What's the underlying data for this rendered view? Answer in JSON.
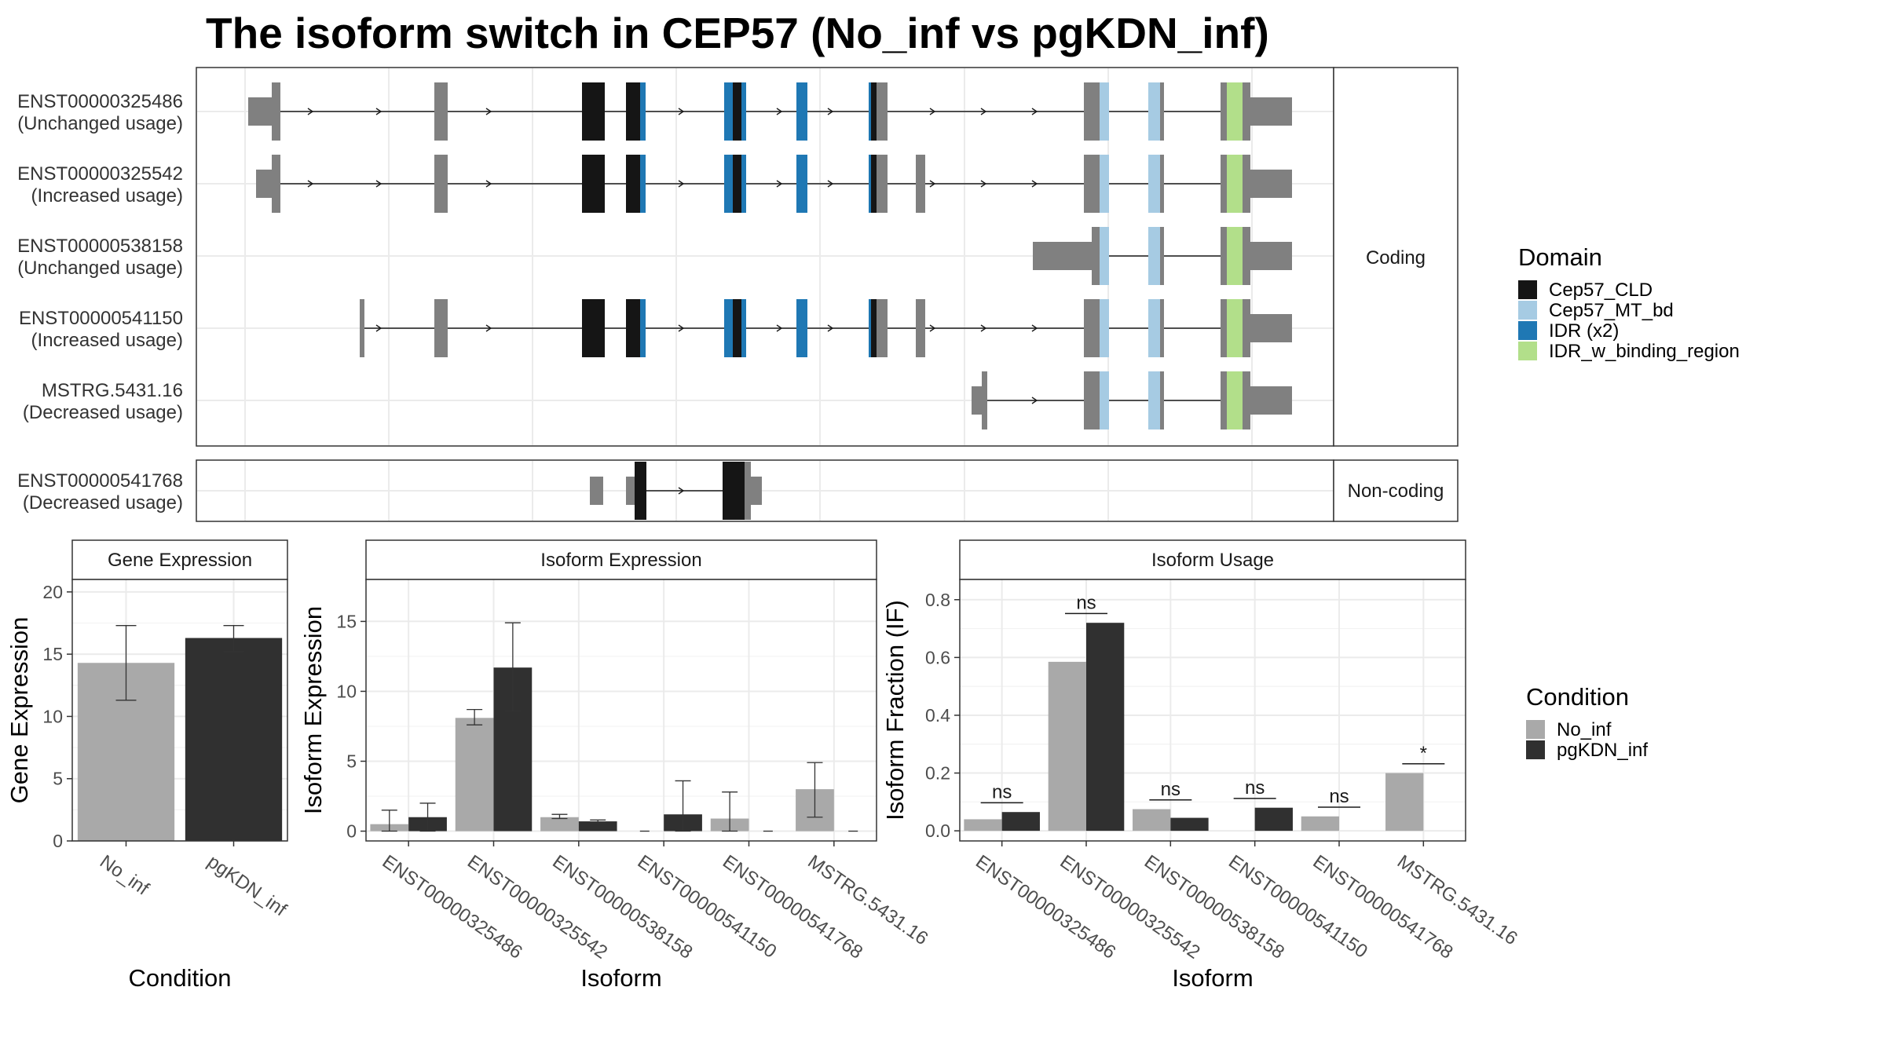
{
  "title": "The isoform switch in CEP57 (No_inf vs pgKDN_inf)",
  "colors": {
    "exon": "#808080",
    "Cep57_CLD": "#151515",
    "Cep57_MT_bd": "#a6cbe3",
    "IDR (x2)": "#1f78b4",
    "IDR_w_binding_region": "#b2df8a",
    "No_inf": "#a9a9a9",
    "pgKDN_inf": "#303030"
  },
  "structure": {
    "coding_label": "Coding",
    "noncoding_label": "Non-coding",
    "transcripts": [
      {
        "id": "ENST00000325486",
        "usage": "(Unchanged usage)"
      },
      {
        "id": "ENST00000325542",
        "usage": "(Increased usage)"
      },
      {
        "id": "ENST00000538158",
        "usage": "(Unchanged usage)"
      },
      {
        "id": "ENST00000541150",
        "usage": "(Increased usage)"
      },
      {
        "id": "MSTRG.5431.16",
        "usage": "(Decreased usage)"
      }
    ],
    "noncoding_transcripts": [
      {
        "id": "ENST00000541768",
        "usage": "(Decreased usage)"
      }
    ]
  },
  "legend_domain": {
    "title": "Domain",
    "items": [
      "Cep57_CLD",
      "Cep57_MT_bd",
      "IDR (x2)",
      "IDR_w_binding_region"
    ]
  },
  "legend_condition": {
    "title": "Condition",
    "items": [
      "No_inf",
      "pgKDN_inf"
    ]
  },
  "chart_data": [
    {
      "type": "bar",
      "title": "Gene Expression",
      "xlabel": "Condition",
      "ylabel": "Gene Expression",
      "ylim": [
        0,
        21
      ],
      "yticks": [
        0,
        5,
        10,
        15,
        20
      ],
      "categories": [
        "No_inf",
        "pgKDN_inf"
      ],
      "values": [
        14.3,
        16.3
      ],
      "errors": [
        [
          11.3,
          17.3
        ],
        [
          15.2,
          17.3
        ]
      ]
    },
    {
      "type": "bar",
      "title": "Isoform Expression",
      "xlabel": "Isoform",
      "ylabel": "Isoform Expression",
      "ylim": [
        -0.7,
        18
      ],
      "yticks": [
        0,
        5,
        10,
        15
      ],
      "categories": [
        "ENST00000325486",
        "ENST00000325542",
        "ENST00000538158",
        "ENST00000541150",
        "ENST00000541768",
        "MSTRG.5431.16"
      ],
      "series": [
        {
          "name": "No_inf",
          "values": [
            0.5,
            8.1,
            1.0,
            0.0,
            0.9,
            3.0
          ],
          "errors": [
            [
              0.0,
              1.5
            ],
            [
              7.6,
              8.7
            ],
            [
              0.9,
              1.2
            ],
            [
              0,
              0
            ],
            [
              0.0,
              2.8
            ],
            [
              1.0,
              4.9
            ]
          ]
        },
        {
          "name": "pgKDN_inf",
          "values": [
            1.0,
            11.7,
            0.7,
            1.2,
            0.0,
            0.0
          ],
          "errors": [
            [
              0.0,
              2.0
            ],
            [
              8.6,
              14.9
            ],
            [
              0.6,
              0.8
            ],
            [
              0.0,
              3.6
            ],
            [
              0,
              0
            ],
            [
              0,
              0
            ]
          ]
        }
      ]
    },
    {
      "type": "bar",
      "title": "Isoform Usage",
      "xlabel": "Isoform",
      "ylabel": "Isoform Fraction (IF)",
      "ylim": [
        -0.035,
        0.87
      ],
      "yticks": [
        0.0,
        0.2,
        0.4,
        0.6,
        0.8
      ],
      "categories": [
        "ENST00000325486",
        "ENST00000325542",
        "ENST00000538158",
        "ENST00000541150",
        "ENST00000541768",
        "MSTRG.5431.16"
      ],
      "series": [
        {
          "name": "No_inf",
          "values": [
            0.04,
            0.585,
            0.075,
            0.0,
            0.05,
            0.2
          ]
        },
        {
          "name": "pgKDN_inf",
          "values": [
            0.065,
            0.72,
            0.045,
            0.08,
            0.0,
            0.0
          ]
        }
      ],
      "significance": [
        "ns",
        "ns",
        "ns",
        "ns",
        "ns",
        "*"
      ]
    }
  ]
}
